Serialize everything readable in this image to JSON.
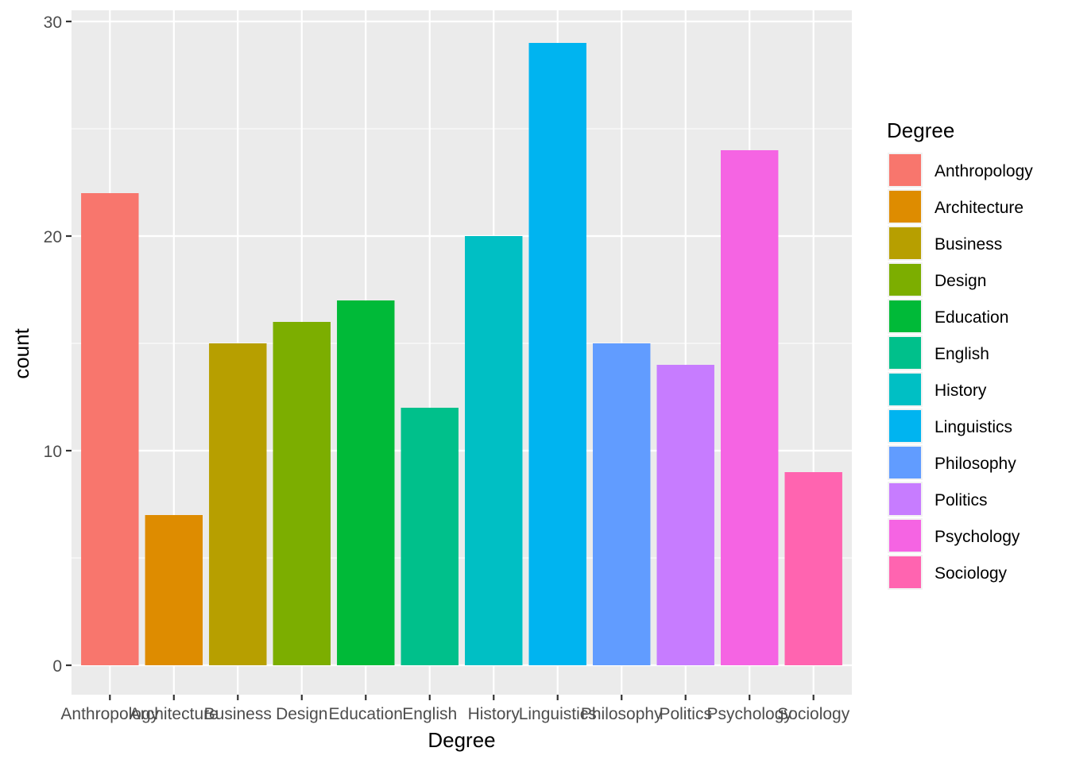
{
  "chart_data": {
    "type": "bar",
    "xlabel": "Degree",
    "ylabel": "count",
    "categories": [
      "Anthropology",
      "Architecture",
      "Business",
      "Design",
      "Education",
      "English",
      "History",
      "Linguistics",
      "Philosophy",
      "Politics",
      "Psychology",
      "Sociology"
    ],
    "values": [
      22,
      7,
      15,
      16,
      17,
      12,
      20,
      29,
      15,
      14,
      24,
      9
    ],
    "colors": [
      "#F8766D",
      "#DE8C00",
      "#B79F00",
      "#7CAE00",
      "#00BA38",
      "#00C08B",
      "#00BFC4",
      "#00B4F0",
      "#619CFF",
      "#C77CFF",
      "#F564E3",
      "#FF64B0"
    ],
    "ylim": [
      0,
      30
    ],
    "y_ticks": [
      0,
      10,
      20,
      30
    ],
    "grid": true,
    "panel_background": "#EBEBEB",
    "legend": {
      "title": "Degree",
      "placement": "right",
      "entries": [
        "Anthropology",
        "Architecture",
        "Business",
        "Design",
        "Education",
        "English",
        "History",
        "Linguistics",
        "Philosophy",
        "Politics",
        "Psychology",
        "Sociology"
      ]
    }
  }
}
